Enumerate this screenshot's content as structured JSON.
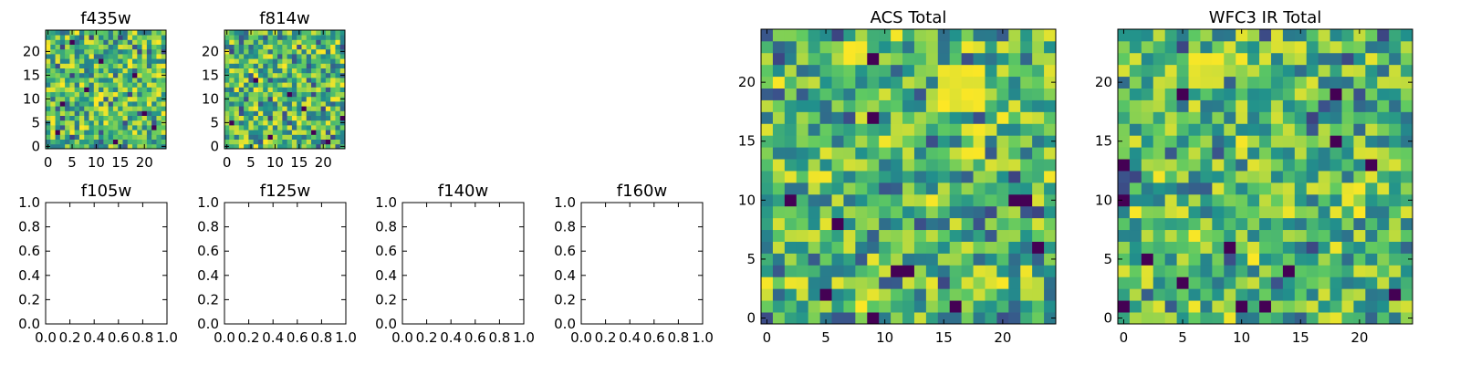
{
  "figure": {
    "background": "#ffffff",
    "colormap": "viridis",
    "colormap_stops": [
      "#440154",
      "#3b528b",
      "#21918c",
      "#5ec962",
      "#fde725"
    ]
  },
  "chart_data": [
    {
      "type": "heatmap",
      "title": "f435w",
      "shape": [
        25,
        25
      ],
      "xlim": [
        -0.5,
        24.5
      ],
      "ylim": [
        -0.5,
        24.5
      ],
      "xticks": [
        0,
        5,
        10,
        15,
        20
      ],
      "yticks": [
        0,
        5,
        10,
        15,
        20
      ],
      "xtick_labels": [
        "0",
        "5",
        "10",
        "15",
        "20"
      ],
      "ytick_labels": [
        "0",
        "5",
        "10",
        "15",
        "20"
      ],
      "origin": "lower",
      "grid": false,
      "value_range": [
        0,
        1
      ],
      "seed": 11,
      "dark_cells": [
        [
          2,
          3
        ],
        [
          8,
          12
        ],
        [
          14,
          1
        ],
        [
          20,
          7
        ],
        [
          11,
          18
        ],
        [
          5,
          22
        ],
        [
          18,
          15
        ],
        [
          22,
          4
        ],
        [
          3,
          9
        ]
      ]
    },
    {
      "type": "heatmap",
      "title": "f814w",
      "shape": [
        25,
        25
      ],
      "xlim": [
        -0.5,
        24.5
      ],
      "ylim": [
        -0.5,
        24.5
      ],
      "xticks": [
        0,
        5,
        10,
        15,
        20
      ],
      "yticks": [
        0,
        5,
        10,
        15,
        20
      ],
      "xtick_labels": [
        "0",
        "5",
        "10",
        "15",
        "20"
      ],
      "ytick_labels": [
        "0",
        "5",
        "10",
        "15",
        "20"
      ],
      "origin": "lower",
      "grid": false,
      "value_range": [
        0,
        1
      ],
      "seed": 27,
      "dark_cells": [
        [
          1,
          5
        ],
        [
          9,
          2
        ],
        [
          16,
          8
        ],
        [
          21,
          1
        ],
        [
          13,
          11
        ],
        [
          6,
          14
        ],
        [
          24,
          6
        ],
        [
          18,
          3
        ]
      ]
    },
    {
      "type": "empty",
      "title": "f105w",
      "xlim": [
        0,
        1
      ],
      "ylim": [
        0,
        1
      ],
      "xticks": [
        0,
        0.2,
        0.4,
        0.6,
        0.8,
        1.0
      ],
      "yticks": [
        0,
        0.2,
        0.4,
        0.6,
        0.8,
        1.0
      ],
      "xtick_labels": [
        "0.0",
        "0.2",
        "0.4",
        "0.6",
        "0.8",
        "1.0"
      ],
      "ytick_labels": [
        "0.0",
        "0.2",
        "0.4",
        "0.6",
        "0.8",
        "1.0"
      ],
      "grid": false
    },
    {
      "type": "empty",
      "title": "f125w",
      "xlim": [
        0,
        1
      ],
      "ylim": [
        0,
        1
      ],
      "xticks": [
        0,
        0.2,
        0.4,
        0.6,
        0.8,
        1.0
      ],
      "yticks": [
        0,
        0.2,
        0.4,
        0.6,
        0.8,
        1.0
      ],
      "xtick_labels": [
        "0.0",
        "0.2",
        "0.4",
        "0.6",
        "0.8",
        "1.0"
      ],
      "ytick_labels": [
        "0.0",
        "0.2",
        "0.4",
        "0.6",
        "0.8",
        "1.0"
      ],
      "grid": false
    },
    {
      "type": "empty",
      "title": "f140w",
      "xlim": [
        0,
        1
      ],
      "ylim": [
        0,
        1
      ],
      "xticks": [
        0,
        0.2,
        0.4,
        0.6,
        0.8,
        1.0
      ],
      "yticks": [
        0,
        0.2,
        0.4,
        0.6,
        0.8,
        1.0
      ],
      "xtick_labels": [
        "0.0",
        "0.2",
        "0.4",
        "0.6",
        "0.8",
        "1.0"
      ],
      "ytick_labels": [
        "0.0",
        "0.2",
        "0.4",
        "0.6",
        "0.8",
        "1.0"
      ],
      "grid": false
    },
    {
      "type": "empty",
      "title": "f160w",
      "xlim": [
        0,
        1
      ],
      "ylim": [
        0,
        1
      ],
      "xticks": [
        0,
        0.2,
        0.4,
        0.6,
        0.8,
        1.0
      ],
      "yticks": [
        0,
        0.2,
        0.4,
        0.6,
        0.8,
        1.0
      ],
      "xtick_labels": [
        "0.0",
        "0.2",
        "0.4",
        "0.6",
        "0.8",
        "1.0"
      ],
      "ytick_labels": [
        "0.0",
        "0.2",
        "0.4",
        "0.6",
        "0.8",
        "1.0"
      ],
      "grid": false
    },
    {
      "type": "heatmap",
      "title": "ACS Total",
      "shape": [
        25,
        25
      ],
      "xlim": [
        -0.5,
        24.5
      ],
      "ylim": [
        -0.5,
        24.5
      ],
      "xticks": [
        0,
        5,
        10,
        15,
        20
      ],
      "yticks": [
        0,
        5,
        10,
        15,
        20
      ],
      "xtick_labels": [
        "0",
        "5",
        "10",
        "15",
        "20"
      ],
      "ytick_labels": [
        "0",
        "5",
        "10",
        "15",
        "20"
      ],
      "origin": "lower",
      "grid": false,
      "value_range": [
        0,
        1
      ],
      "seed": 53,
      "bright_region": [
        [
          15,
          18
        ],
        [
          18,
          21
        ]
      ],
      "dark_cells": [
        [
          9,
          0
        ],
        [
          9,
          22
        ],
        [
          9,
          17
        ],
        [
          11,
          4
        ],
        [
          12,
          4
        ],
        [
          21,
          10
        ],
        [
          22,
          10
        ],
        [
          5,
          2
        ],
        [
          16,
          1
        ],
        [
          2,
          10
        ],
        [
          6,
          8
        ],
        [
          23,
          6
        ]
      ]
    },
    {
      "type": "heatmap",
      "title": "WFC3 IR Total",
      "shape": [
        25,
        25
      ],
      "xlim": [
        -0.5,
        24.5
      ],
      "ylim": [
        -0.5,
        24.5
      ],
      "xticks": [
        0,
        5,
        10,
        15,
        20
      ],
      "yticks": [
        0,
        5,
        10,
        15,
        20
      ],
      "xtick_labels": [
        "0",
        "5",
        "10",
        "15",
        "20"
      ],
      "ytick_labels": [
        "0",
        "5",
        "10",
        "15",
        "20"
      ],
      "origin": "lower",
      "grid": false,
      "value_range": [
        0,
        1
      ],
      "seed": 89,
      "bright_region": [
        [
          6,
          20
        ],
        [
          8,
          22
        ]
      ],
      "dark_cells": [
        [
          0,
          13
        ],
        [
          0,
          10
        ],
        [
          0,
          1
        ],
        [
          2,
          5
        ],
        [
          5,
          3
        ],
        [
          9,
          6
        ],
        [
          10,
          1
        ],
        [
          12,
          1
        ],
        [
          14,
          4
        ],
        [
          18,
          15
        ],
        [
          18,
          19
        ],
        [
          23,
          2
        ],
        [
          21,
          13
        ],
        [
          5,
          19
        ]
      ]
    }
  ]
}
